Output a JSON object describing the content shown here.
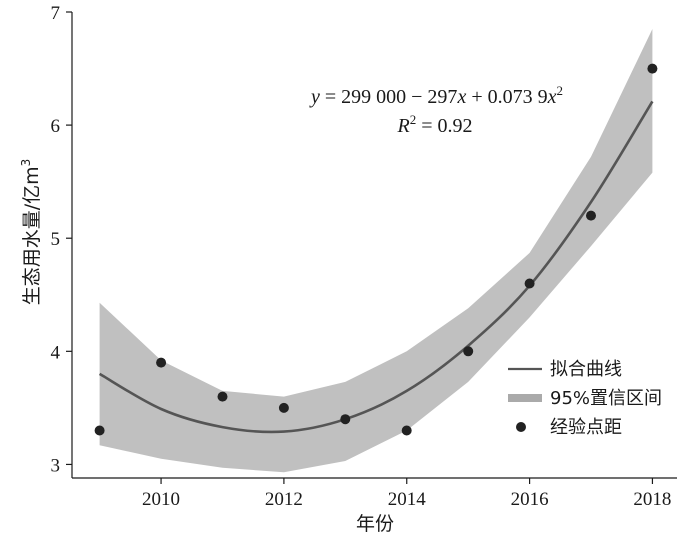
{
  "chart_data": {
    "type": "scatter",
    "xlabel": "年份",
    "ylabel_main": "生态用水量/亿m",
    "ylabel_sup": "3",
    "xlim": [
      2008.55,
      2018.4
    ],
    "ylim": [
      2.88,
      7.0
    ],
    "xticks": [
      2010,
      2012,
      2014,
      2016,
      2018
    ],
    "yticks": [
      3,
      4,
      5,
      6,
      7
    ],
    "equation": {
      "line1_prefix": "y",
      "line1_body": " = 299 000 − 297",
      "line1_x1": "x",
      "line1_mid": " + 0.073 9",
      "line1_x2": "x",
      "line1_sup": "2",
      "line2_r": "R",
      "line2_sup": "2",
      "line2_value": " = 0.92"
    },
    "series": [
      {
        "name": "经验点距",
        "kind": "points",
        "color": "#222222",
        "x": [
          2009,
          2010,
          2011,
          2012,
          2013,
          2014,
          2015,
          2016,
          2017,
          2018
        ],
        "y": [
          3.3,
          3.9,
          3.6,
          3.5,
          3.4,
          3.3,
          4.0,
          4.6,
          5.2,
          6.5
        ]
      },
      {
        "name": "拟合曲线",
        "kind": "line",
        "color": "#555555",
        "x": [
          2009,
          2010,
          2011,
          2012,
          2013,
          2014,
          2015,
          2016,
          2017,
          2018
        ],
        "y": [
          3.8,
          3.49,
          3.33,
          3.29,
          3.4,
          3.65,
          4.05,
          4.58,
          5.32,
          6.21
        ]
      },
      {
        "name": "95%置信区间",
        "kind": "band",
        "color": "#c0c0c0",
        "x": [
          2009,
          2010,
          2011,
          2012,
          2013,
          2014,
          2015,
          2016,
          2017,
          2018
        ],
        "lower": [
          3.17,
          3.05,
          2.97,
          2.93,
          3.03,
          3.3,
          3.73,
          4.3,
          4.93,
          5.58
        ],
        "upper": [
          4.43,
          3.92,
          3.65,
          3.6,
          3.73,
          4.0,
          4.38,
          4.87,
          5.72,
          6.85
        ]
      }
    ],
    "legend": {
      "position": "bottom-right",
      "items": [
        "拟合曲线",
        "95%置信区间",
        "经验点距"
      ]
    }
  }
}
